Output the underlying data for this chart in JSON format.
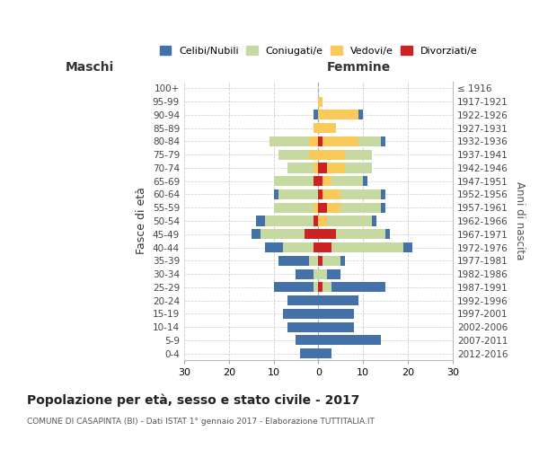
{
  "age_groups_display": [
    "100+",
    "95-99",
    "90-94",
    "85-89",
    "80-84",
    "75-79",
    "70-74",
    "65-69",
    "60-64",
    "55-59",
    "50-54",
    "45-49",
    "40-44",
    "35-39",
    "30-34",
    "25-29",
    "20-24",
    "15-19",
    "10-14",
    "5-9",
    "0-4"
  ],
  "birth_years_display": [
    "≤ 1916",
    "1917-1921",
    "1922-1926",
    "1927-1931",
    "1932-1936",
    "1937-1941",
    "1942-1946",
    "1947-1951",
    "1952-1956",
    "1957-1961",
    "1962-1966",
    "1967-1971",
    "1972-1976",
    "1977-1981",
    "1982-1986",
    "1987-1991",
    "1992-1996",
    "1997-2001",
    "2002-2006",
    "2007-2011",
    "2012-2016"
  ],
  "maschi": {
    "celibi": [
      0,
      0,
      1,
      0,
      0,
      0,
      0,
      0,
      1,
      0,
      2,
      2,
      4,
      7,
      4,
      9,
      7,
      8,
      7,
      5,
      4
    ],
    "coniugati": [
      0,
      0,
      0,
      0,
      9,
      7,
      6,
      9,
      9,
      9,
      11,
      10,
      7,
      2,
      1,
      1,
      0,
      0,
      0,
      0,
      0
    ],
    "vedovi": [
      0,
      0,
      0,
      1,
      2,
      2,
      1,
      0,
      0,
      1,
      0,
      0,
      0,
      0,
      0,
      0,
      0,
      0,
      0,
      0,
      0
    ],
    "divorziati": [
      0,
      0,
      0,
      0,
      0,
      0,
      0,
      1,
      0,
      0,
      1,
      3,
      1,
      0,
      0,
      0,
      0,
      0,
      0,
      0,
      0
    ]
  },
  "femmine": {
    "nubili": [
      0,
      0,
      1,
      0,
      1,
      0,
      0,
      1,
      1,
      1,
      1,
      1,
      2,
      1,
      3,
      12,
      9,
      8,
      8,
      14,
      3
    ],
    "coniugate": [
      0,
      0,
      0,
      0,
      5,
      6,
      6,
      7,
      9,
      9,
      10,
      11,
      16,
      4,
      2,
      2,
      0,
      0,
      0,
      0,
      0
    ],
    "vedove": [
      0,
      1,
      9,
      4,
      8,
      6,
      4,
      2,
      4,
      3,
      2,
      0,
      0,
      0,
      0,
      0,
      0,
      0,
      0,
      0,
      0
    ],
    "divorziate": [
      0,
      0,
      0,
      0,
      1,
      0,
      2,
      1,
      1,
      2,
      0,
      4,
      3,
      1,
      0,
      1,
      0,
      0,
      0,
      0,
      0
    ]
  },
  "colors": {
    "celibi": "#4472a8",
    "coniugati": "#c5d9a0",
    "vedovi": "#f9c95a",
    "divorziati": "#cc2222"
  },
  "xlim": 30,
  "title": "Popolazione per età, sesso e stato civile - 2017",
  "subtitle": "COMUNE DI CASAPINTA (BI) - Dati ISTAT 1° gennaio 2017 - Elaborazione TUTTITALIA.IT",
  "ylabel": "Fasce di età",
  "right_ylabel": "Anni di nascita",
  "maschi_label": "Maschi",
  "femmine_label": "Femmine",
  "legend_labels": [
    "Celibi/Nubili",
    "Coniugati/e",
    "Vedovi/e",
    "Divorziati/e"
  ],
  "background_color": "#ffffff",
  "grid_color": "#cccccc"
}
